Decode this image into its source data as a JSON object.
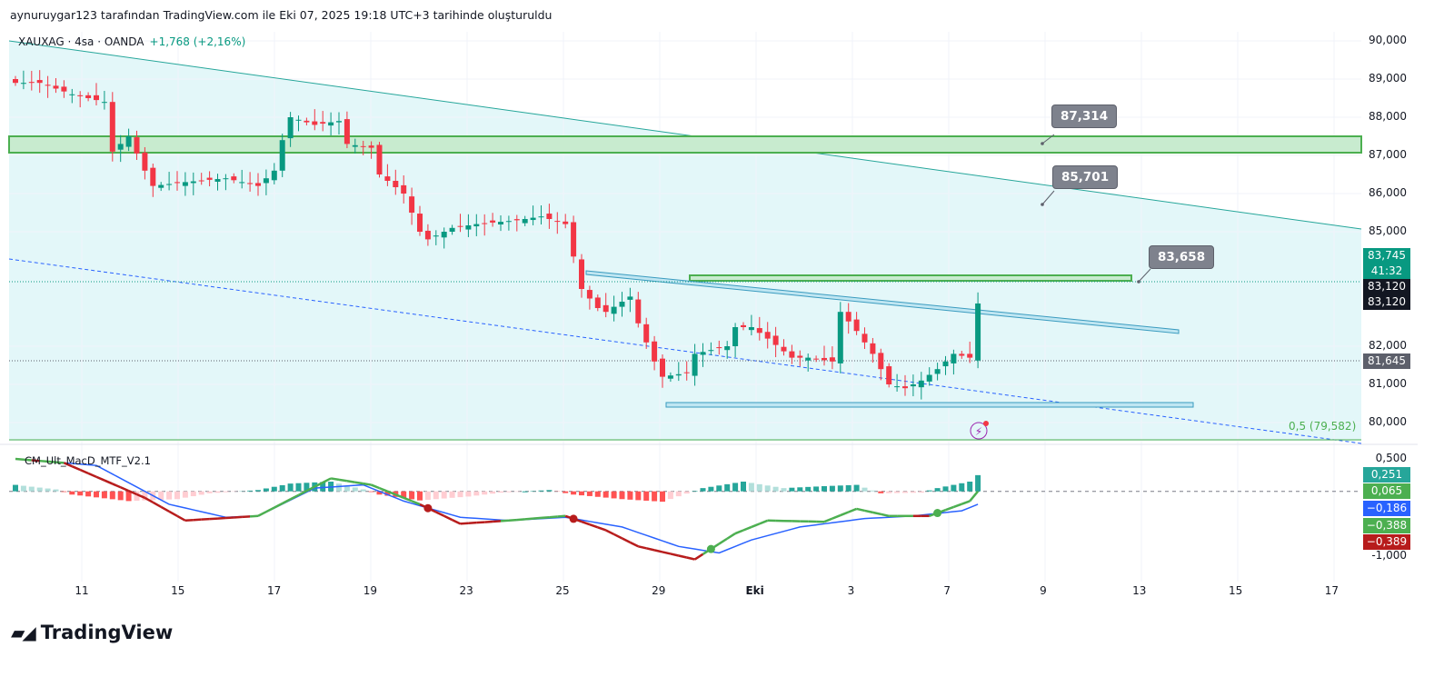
{
  "header": {
    "caption": "aynuruygar123 tarafından TradingView.com ile Eki 07, 2025 19:18 UTC+3 tarihinde oluşturuldu"
  },
  "legend": {
    "symbol": "XAUXAG · 4sa · OANDA",
    "change": "+1,768 (+2,16%)"
  },
  "indicator": {
    "name": "CM_Ult_MacD_MTF_V2.1"
  },
  "callouts": [
    "87,314",
    "85,701",
    "83,658"
  ],
  "fib_label": "0,5 (79,582)",
  "price_tags": [
    {
      "text": "83,745",
      "color": "#089981"
    },
    {
      "text": "41:32",
      "color": "#089981"
    },
    {
      "text": "83,120",
      "color": "#131722"
    },
    {
      "text": "83,120",
      "color": "#131722"
    },
    {
      "text": "81,645",
      "color": "#5d606b"
    }
  ],
  "macd_tags": [
    {
      "text": "0,251",
      "color": "#26a69a"
    },
    {
      "text": "0,065",
      "color": "#4caf50"
    },
    {
      "text": "−0,186",
      "color": "#2962ff"
    },
    {
      "text": "−0,388",
      "color": "#4caf50"
    },
    {
      "text": "−0,389",
      "color": "#b71c1c"
    }
  ],
  "logo": "TradingView",
  "chart_data": {
    "type": "candlestick",
    "symbol": "XAUXAG",
    "timeframe": "4sa",
    "y_ticks": [
      "90,000",
      "89,000",
      "88,000",
      "87,000",
      "86,000",
      "85,000",
      "82,000",
      "81,000",
      "80,000"
    ],
    "y_tick_values": [
      90000,
      89000,
      88000,
      87000,
      86000,
      85000,
      82000,
      81000,
      80000
    ],
    "ylim": [
      79400,
      90000
    ],
    "x_ticks": [
      "11",
      "15",
      "17",
      "19",
      "23",
      "25",
      "29",
      "Eki",
      "3",
      "7",
      "9",
      "13",
      "15",
      "17"
    ],
    "close_keypoints": [
      [
        0,
        88900
      ],
      [
        3,
        88900
      ],
      [
        7,
        88600
      ],
      [
        11,
        88400
      ],
      [
        12,
        87100
      ],
      [
        14,
        87500
      ],
      [
        16,
        86600
      ],
      [
        17,
        86200
      ],
      [
        21,
        86300
      ],
      [
        26,
        86400
      ],
      [
        30,
        86200
      ],
      [
        32,
        86600
      ],
      [
        33,
        87400
      ],
      [
        34,
        88000
      ],
      [
        37,
        87800
      ],
      [
        40,
        87900
      ],
      [
        41,
        87300
      ],
      [
        44,
        87200
      ],
      [
        45,
        86500
      ],
      [
        48,
        86000
      ],
      [
        50,
        85000
      ],
      [
        51,
        84800
      ],
      [
        54,
        85100
      ],
      [
        57,
        85200
      ],
      [
        62,
        85300
      ],
      [
        65,
        85400
      ],
      [
        68,
        85200
      ],
      [
        70,
        83500
      ],
      [
        72,
        83000
      ],
      [
        73,
        82900
      ],
      [
        76,
        83300
      ],
      [
        77,
        82600
      ],
      [
        79,
        81600
      ],
      [
        80,
        81200
      ],
      [
        83,
        81300
      ],
      [
        84,
        81800
      ],
      [
        88,
        82000
      ],
      [
        89,
        82500
      ],
      [
        91,
        82500
      ],
      [
        93,
        82200
      ],
      [
        96,
        81700
      ],
      [
        98,
        81700
      ],
      [
        101,
        81600
      ],
      [
        102,
        82900
      ],
      [
        104,
        82400
      ],
      [
        106,
        81800
      ],
      [
        108,
        81000
      ],
      [
        110,
        80900
      ],
      [
        112,
        81100
      ],
      [
        114,
        81400
      ],
      [
        116,
        81800
      ],
      [
        118,
        81700
      ],
      [
        119,
        83120
      ]
    ],
    "zone_levels": [
      87100,
      87500
    ],
    "macd": {
      "y_ticks": [
        "0,500",
        "-1,000"
      ],
      "ylim": [
        -1.2,
        0.55
      ],
      "line_keypoints": [
        [
          0,
          0.5
        ],
        [
          10,
          0.4
        ],
        [
          19,
          -0.2
        ],
        [
          26,
          -0.4
        ],
        [
          30,
          -0.38
        ],
        [
          37,
          0.05
        ],
        [
          43,
          0.1
        ],
        [
          48,
          -0.15
        ],
        [
          55,
          -0.4
        ],
        [
          61,
          -0.45
        ],
        [
          68,
          -0.4
        ],
        [
          75,
          -0.55
        ],
        [
          82,
          -0.85
        ],
        [
          87,
          -0.95
        ],
        [
          91,
          -0.75
        ],
        [
          97,
          -0.55
        ],
        [
          105,
          -0.42
        ],
        [
          111,
          -0.38
        ],
        [
          117,
          -0.3
        ],
        [
          119,
          -0.2
        ]
      ],
      "signal_keypoints": [
        [
          0,
          0.5
        ],
        [
          6,
          0.44
        ],
        [
          16,
          -0.1
        ],
        [
          21,
          -0.45
        ],
        [
          30,
          -0.38
        ],
        [
          39,
          0.2
        ],
        [
          44,
          0.1
        ],
        [
          50,
          -0.2
        ],
        [
          55,
          -0.5
        ],
        [
          61,
          -0.45
        ],
        [
          68,
          -0.38
        ],
        [
          73,
          -0.6
        ],
        [
          77,
          -0.85
        ],
        [
          84,
          -1.05
        ],
        [
          89,
          -0.65
        ],
        [
          93,
          -0.45
        ],
        [
          100,
          -0.47
        ],
        [
          104,
          -0.27
        ],
        [
          108,
          -0.38
        ],
        [
          113,
          -0.38
        ],
        [
          118,
          -0.15
        ],
        [
          119,
          0.0
        ]
      ],
      "hist_keypoints": [
        [
          0,
          0.1
        ],
        [
          5,
          0.03
        ],
        [
          7,
          -0.05
        ],
        [
          14,
          -0.15
        ],
        [
          20,
          -0.12
        ],
        [
          24,
          -0.03
        ],
        [
          30,
          0.02
        ],
        [
          34,
          0.12
        ],
        [
          39,
          0.15
        ],
        [
          43,
          0.03
        ],
        [
          45,
          -0.05
        ],
        [
          50,
          -0.14
        ],
        [
          56,
          -0.08
        ],
        [
          60,
          -0.02
        ],
        [
          66,
          0.02
        ],
        [
          69,
          -0.05
        ],
        [
          75,
          -0.12
        ],
        [
          80,
          -0.16
        ],
        [
          85,
          0.05
        ],
        [
          90,
          0.15
        ],
        [
          95,
          0.05
        ],
        [
          100,
          0.08
        ],
        [
          104,
          0.1
        ],
        [
          107,
          -0.03
        ],
        [
          112,
          -0.02
        ],
        [
          114,
          0.05
        ],
        [
          118,
          0.15
        ],
        [
          119,
          0.25
        ]
      ]
    }
  }
}
